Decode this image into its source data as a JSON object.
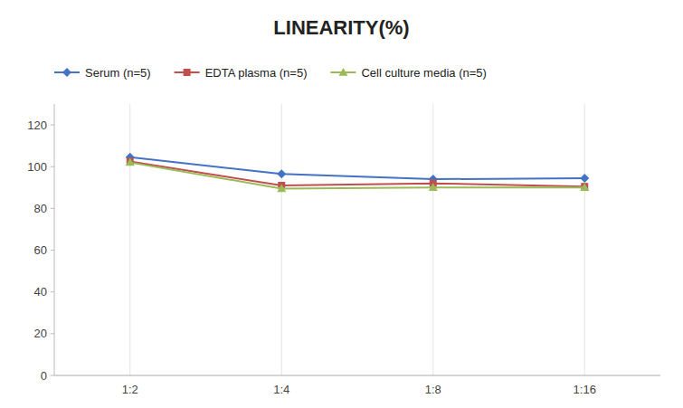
{
  "chart_data": {
    "type": "line",
    "title": "LINEARITY(%)",
    "categories": [
      "1:2",
      "1:4",
      "1:8",
      "1:16"
    ],
    "series": [
      {
        "name": "Serum (n=5)",
        "color": "#4472C4",
        "marker": "diamond",
        "values": [
          104.5,
          96.5,
          94.0,
          94.5
        ]
      },
      {
        "name": "EDTA plasma (n=5)",
        "color": "#C0504D",
        "marker": "square",
        "values": [
          102.5,
          91.0,
          92.0,
          90.5
        ]
      },
      {
        "name": "Cell culture media (n=5)",
        "color": "#9BBB59",
        "marker": "triangle",
        "values": [
          102.0,
          89.5,
          90.0,
          90.0
        ]
      }
    ],
    "ylim": [
      0,
      130
    ],
    "yticks": [
      0,
      20,
      40,
      60,
      80,
      100,
      120
    ],
    "grid": "x",
    "legend": "top"
  }
}
